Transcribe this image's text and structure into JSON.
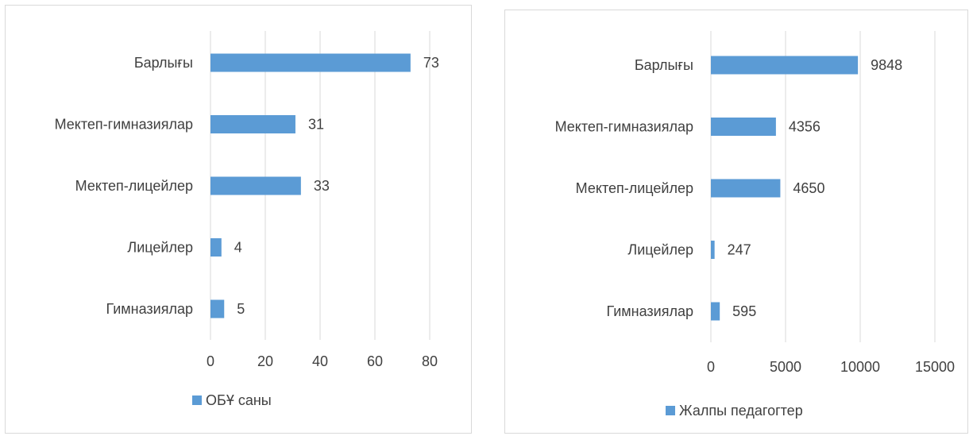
{
  "charts": [
    {
      "type": "bar",
      "orientation": "horizontal",
      "categories": [
        "Барлығы",
        "Мектеп-гимназиялар",
        "Мектеп-лицейлер",
        "Лицейлер",
        "Гимназиялар"
      ],
      "series": [
        {
          "name": "ОБҰ саны",
          "values": [
            73,
            31,
            33,
            4,
            5
          ]
        }
      ],
      "xlim": [
        0,
        80
      ],
      "xticks": [
        "0",
        "20",
        "40",
        "60",
        "80"
      ],
      "grid": "vertical",
      "legend": "bottom",
      "bar_color": "#5b9bd5"
    },
    {
      "type": "bar",
      "orientation": "horizontal",
      "categories": [
        "Барлығы",
        "Мектеп-гимназиялар",
        "Мектеп-лицейлер",
        "Лицейлер",
        "Гимназиялар"
      ],
      "series": [
        {
          "name": "Жалпы педагогтер",
          "values": [
            9848,
            4356,
            4650,
            247,
            595
          ]
        }
      ],
      "xlim": [
        0,
        15000
      ],
      "xticks": [
        "0",
        "5000",
        "10000",
        "15000"
      ],
      "grid": "vertical",
      "legend": "bottom",
      "bar_color": "#5b9bd5"
    }
  ]
}
